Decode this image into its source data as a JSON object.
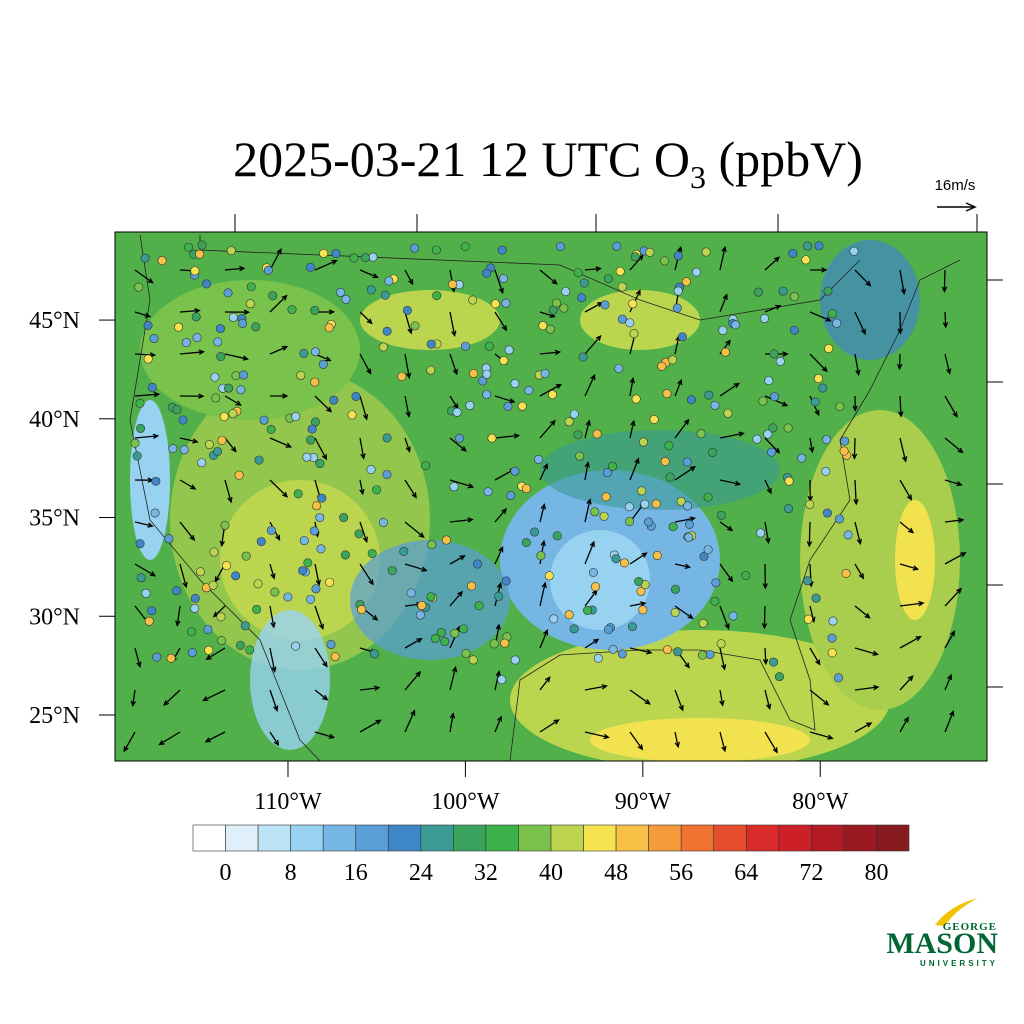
{
  "chart_data": {
    "type": "map",
    "title": {
      "main": "2025-03-21 12 UTC O",
      "sub": "3",
      "tail": " (ppbV)"
    },
    "wind_reference": "16m/s",
    "xlim": [
      -119.75,
      -70.6
    ],
    "ylim": [
      22.67,
      49.46
    ],
    "xticks": [
      {
        "value": -110,
        "label": "110°W"
      },
      {
        "value": -100,
        "label": "100°W"
      },
      {
        "value": -90,
        "label": "90°W"
      },
      {
        "value": -80,
        "label": "80°W"
      }
    ],
    "yticks": [
      {
        "value": 25,
        "label": "25°N"
      },
      {
        "value": 30,
        "label": "30°N"
      },
      {
        "value": 35,
        "label": "35°N"
      },
      {
        "value": 40,
        "label": "40°N"
      },
      {
        "value": 45,
        "label": "45°N"
      }
    ],
    "colorbar": {
      "lim": [
        -4,
        84
      ],
      "ticks": [
        0,
        8,
        16,
        24,
        32,
        40,
        48,
        56,
        64,
        72,
        80
      ],
      "colors": [
        "#ffffff",
        "#dff0fa",
        "#bde3f6",
        "#98d2f1",
        "#76b6e4",
        "#5a9ed8",
        "#3f86c8",
        "#3a9a94",
        "#3aa35e",
        "#3cb34a",
        "#79c24b",
        "#bdd54e",
        "#f6e34f",
        "#f8c046",
        "#f59b3b",
        "#f07332",
        "#e64d2d",
        "#d92b2a",
        "#cc1f27",
        "#b31b24",
        "#9b1a21",
        "#861a1e"
      ]
    },
    "logo": {
      "top": "GEORGE",
      "main": "MASON",
      "bottom": "UNIVERSITY"
    }
  }
}
